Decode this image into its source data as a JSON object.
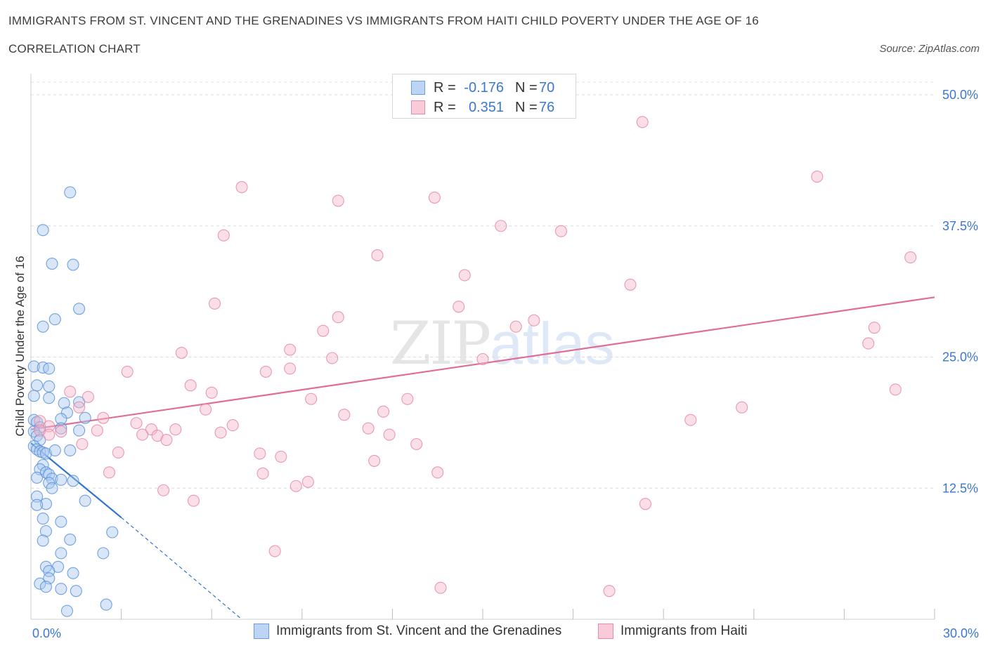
{
  "header": {
    "title": "IMMIGRANTS FROM ST. VINCENT AND THE GRENADINES VS IMMIGRANTS FROM HAITI CHILD POVERTY UNDER THE AGE OF 16",
    "subtitle": "CORRELATION CHART",
    "source": "Source: ZipAtlas.com"
  },
  "watermark": {
    "zip": "ZIP",
    "atlas": "atlas"
  },
  "legend": {
    "rows": [
      {
        "r_label": "R =",
        "r_value": "-0.176",
        "n_label": "N =",
        "n_value": "70",
        "color": "#a9c8f0"
      },
      {
        "r_label": "R =",
        "r_value": "0.351",
        "n_label": "N =",
        "n_value": "76",
        "color": "#f5b8cb"
      }
    ]
  },
  "bottom_legend": [
    {
      "label": "Immigrants from St. Vincent and the Grenadines",
      "color": "#a9c8f0"
    },
    {
      "label": "Immigrants from Haiti",
      "color": "#f5b8cb"
    }
  ],
  "chart_data": {
    "type": "scatter",
    "ylabel": "Child Poverty Under the Age of 16",
    "xlim": [
      0,
      30
    ],
    "ylim": [
      0,
      50
    ],
    "x_tick_labels": [
      {
        "value": 0,
        "label": "0.0%"
      },
      {
        "value": 30,
        "label": "30.0%"
      }
    ],
    "y_tick_labels": [
      {
        "value": 12.5,
        "label": "12.5%"
      },
      {
        "value": 25,
        "label": "25.0%"
      },
      {
        "value": 37.5,
        "label": "37.5%"
      },
      {
        "value": 50,
        "label": "50.0%"
      }
    ],
    "grid": "horizontal dashed",
    "series": [
      {
        "name": "Immigrants from St. Vincent and the Grenadines",
        "color": "#5b93d9",
        "fill": "#a9c8f0",
        "line_color": "#2f74d0",
        "trend": {
          "x0": 0,
          "y0": 16.8,
          "x1": 3.0,
          "y1": 9.7,
          "dash_to_x": 7.0,
          "dash_to_y": 0.0
        },
        "points": [
          [
            1.3,
            40.7
          ],
          [
            0.4,
            37.1
          ],
          [
            0.7,
            33.9
          ],
          [
            1.4,
            33.8
          ],
          [
            1.6,
            29.6
          ],
          [
            0.8,
            28.6
          ],
          [
            0.4,
            27.9
          ],
          [
            0.1,
            24.1
          ],
          [
            0.4,
            24.0
          ],
          [
            0.6,
            23.9
          ],
          [
            0.2,
            22.3
          ],
          [
            0.6,
            22.2
          ],
          [
            0.1,
            21.3
          ],
          [
            0.6,
            21.1
          ],
          [
            1.1,
            20.6
          ],
          [
            1.6,
            20.7
          ],
          [
            1.2,
            19.7
          ],
          [
            0.1,
            19.0
          ],
          [
            0.2,
            18.8
          ],
          [
            1.0,
            19.1
          ],
          [
            1.8,
            19.2
          ],
          [
            0.3,
            18.3
          ],
          [
            1.0,
            18.2
          ],
          [
            1.6,
            18.0
          ],
          [
            0.1,
            17.9
          ],
          [
            0.2,
            17.5
          ],
          [
            0.3,
            17.1
          ],
          [
            0.1,
            16.5
          ],
          [
            0.2,
            16.2
          ],
          [
            0.3,
            16.0
          ],
          [
            0.4,
            15.9
          ],
          [
            0.5,
            15.8
          ],
          [
            0.8,
            16.1
          ],
          [
            1.3,
            16.1
          ],
          [
            0.4,
            14.7
          ],
          [
            0.3,
            14.3
          ],
          [
            0.5,
            14.0
          ],
          [
            0.6,
            13.8
          ],
          [
            0.2,
            13.5
          ],
          [
            0.7,
            13.4
          ],
          [
            0.6,
            13.0
          ],
          [
            1.0,
            13.3
          ],
          [
            1.4,
            13.2
          ],
          [
            0.7,
            12.5
          ],
          [
            0.2,
            11.7
          ],
          [
            0.5,
            11.0
          ],
          [
            0.2,
            10.9
          ],
          [
            1.8,
            11.3
          ],
          [
            0.4,
            9.6
          ],
          [
            1.0,
            9.3
          ],
          [
            0.5,
            8.4
          ],
          [
            1.3,
            7.6
          ],
          [
            2.7,
            8.3
          ],
          [
            0.4,
            7.5
          ],
          [
            1.0,
            6.3
          ],
          [
            2.4,
            6.3
          ],
          [
            0.5,
            5.0
          ],
          [
            0.9,
            5.0
          ],
          [
            1.4,
            4.4
          ],
          [
            0.6,
            4.6
          ],
          [
            0.6,
            3.9
          ],
          [
            0.3,
            3.4
          ],
          [
            0.5,
            3.1
          ],
          [
            1.0,
            2.9
          ],
          [
            1.5,
            2.7
          ],
          [
            2.5,
            1.4
          ],
          [
            1.2,
            0.8
          ]
        ]
      },
      {
        "name": "Immigrants from Haiti",
        "color": "#e58aa6",
        "fill": "#f5b8cb",
        "line_color": "#e06d95",
        "trend": {
          "x0": 0,
          "y0": 18.1,
          "x1": 30,
          "y1": 30.7
        },
        "points": [
          [
            20.3,
            47.4
          ],
          [
            26.1,
            42.2
          ],
          [
            7.0,
            41.2
          ],
          [
            10.2,
            39.9
          ],
          [
            13.4,
            40.2
          ],
          [
            15.6,
            37.5
          ],
          [
            17.6,
            37.0
          ],
          [
            6.4,
            36.6
          ],
          [
            11.5,
            34.7
          ],
          [
            29.2,
            34.5
          ],
          [
            14.4,
            32.8
          ],
          [
            19.9,
            31.9
          ],
          [
            6.1,
            30.1
          ],
          [
            14.2,
            29.8
          ],
          [
            10.2,
            28.8
          ],
          [
            16.7,
            28.5
          ],
          [
            16.1,
            27.9
          ],
          [
            9.7,
            27.5
          ],
          [
            28.0,
            27.8
          ],
          [
            8.6,
            25.7
          ],
          [
            10.0,
            24.9
          ],
          [
            27.8,
            26.3
          ],
          [
            5.0,
            25.4
          ],
          [
            15.0,
            24.8
          ],
          [
            7.8,
            23.6
          ],
          [
            8.6,
            23.9
          ],
          [
            3.2,
            23.6
          ],
          [
            5.3,
            22.3
          ],
          [
            1.9,
            21.2
          ],
          [
            28.7,
            21.9
          ],
          [
            6.0,
            21.6
          ],
          [
            1.3,
            21.7
          ],
          [
            9.3,
            21.0
          ],
          [
            12.5,
            21.0
          ],
          [
            1.6,
            20.2
          ],
          [
            23.6,
            20.2
          ],
          [
            5.8,
            20.0
          ],
          [
            10.4,
            19.5
          ],
          [
            11.7,
            19.8
          ],
          [
            2.4,
            19.2
          ],
          [
            21.9,
            19.0
          ],
          [
            0.3,
            18.9
          ],
          [
            0.6,
            18.4
          ],
          [
            3.5,
            18.7
          ],
          [
            6.7,
            18.5
          ],
          [
            0.3,
            18.0
          ],
          [
            1.0,
            17.9
          ],
          [
            2.2,
            18.0
          ],
          [
            4.0,
            18.1
          ],
          [
            4.8,
            18.1
          ],
          [
            11.2,
            18.2
          ],
          [
            0.6,
            17.6
          ],
          [
            3.7,
            17.6
          ],
          [
            4.2,
            17.5
          ],
          [
            6.3,
            17.8
          ],
          [
            4.5,
            17.1
          ],
          [
            11.9,
            17.6
          ],
          [
            1.7,
            16.7
          ],
          [
            12.8,
            16.7
          ],
          [
            2.9,
            15.9
          ],
          [
            7.6,
            15.8
          ],
          [
            8.3,
            15.5
          ],
          [
            11.4,
            15.1
          ],
          [
            2.6,
            14.0
          ],
          [
            7.7,
            13.9
          ],
          [
            13.5,
            14.0
          ],
          [
            9.2,
            13.1
          ],
          [
            8.8,
            12.7
          ],
          [
            4.4,
            12.3
          ],
          [
            5.4,
            11.3
          ],
          [
            20.4,
            11.0
          ],
          [
            8.1,
            6.5
          ],
          [
            13.6,
            3.0
          ],
          [
            19.2,
            2.7
          ]
        ]
      }
    ]
  }
}
